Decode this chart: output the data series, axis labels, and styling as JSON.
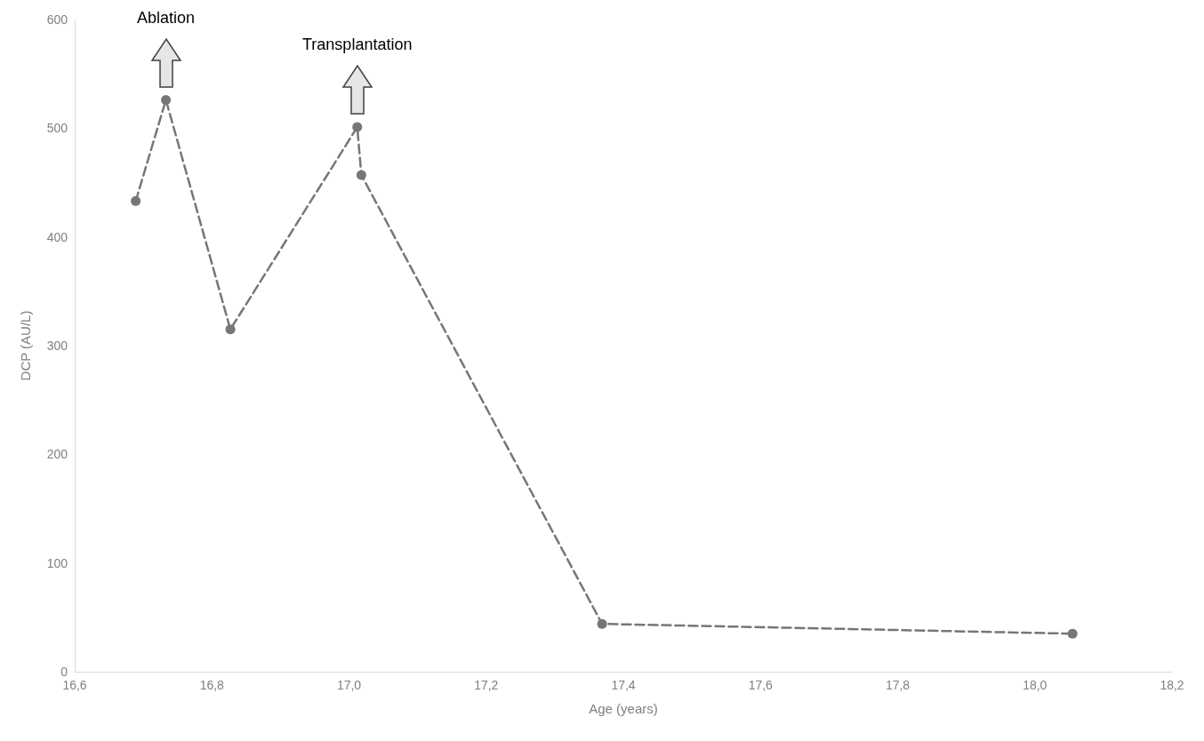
{
  "chart_data": {
    "type": "line",
    "xlabel": "Age (years)",
    "ylabel": "DCP (AU/L)",
    "x": [
      16.689,
      16.733,
      16.827,
      17.012,
      17.018,
      17.369,
      18.055
    ],
    "series": [
      {
        "color": "#767676",
        "values": [
          433,
          526,
          315,
          501,
          457,
          44,
          35
        ]
      }
    ],
    "xlim": [
      16.6,
      18.2
    ],
    "xticks": [
      {
        "value": 16.6,
        "label": "16,6"
      },
      {
        "value": 16.8,
        "label": "16,8"
      },
      {
        "value": 17.0,
        "label": "17,0"
      },
      {
        "value": 17.2,
        "label": "17,2"
      },
      {
        "value": 17.4,
        "label": "17,4"
      },
      {
        "value": 17.6,
        "label": "17,6"
      },
      {
        "value": 17.8,
        "label": "17,8"
      },
      {
        "value": 18.0,
        "label": "18,0"
      },
      {
        "value": 18.2,
        "label": "18,2"
      }
    ],
    "ylim": [
      0,
      600
    ],
    "yticks": [
      0,
      100,
      200,
      300,
      400,
      500,
      600
    ],
    "grid": false,
    "marker": "circle",
    "line_style": "dashed",
    "annotations": [
      "Ablation",
      "Transplantation"
    ]
  }
}
